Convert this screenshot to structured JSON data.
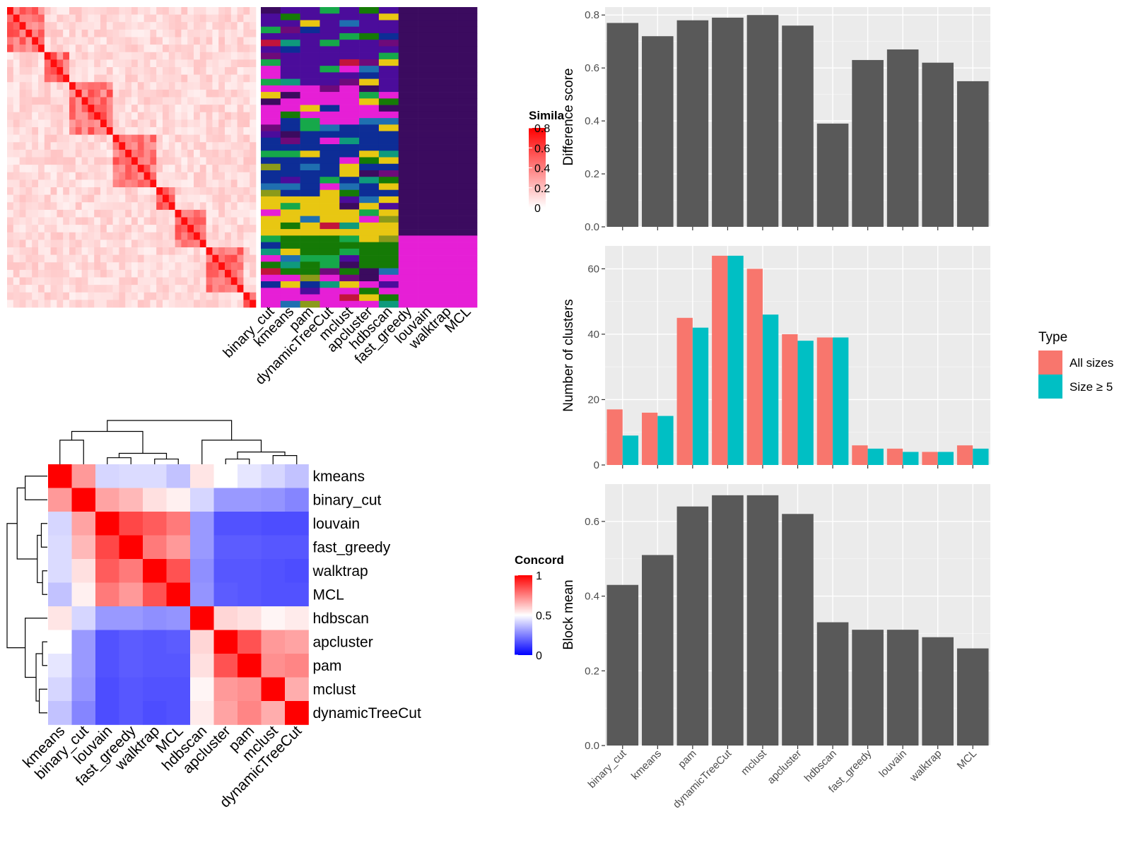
{
  "chart_data": [
    {
      "type": "heatmap",
      "panel": "similarity-matrix",
      "legend_title": "Similarity",
      "legend_title_visible": "Simila",
      "legend_ticks": [
        "0",
        "0.2",
        "0.4",
        "0.6",
        "0.8"
      ],
      "colors": {
        "low": "#ffffff",
        "high": "#ff0000"
      },
      "block_sizes": [
        6,
        4,
        7,
        7,
        3,
        5,
        6,
        2
      ],
      "within_level": 0.55,
      "between_level": 0.06
    },
    {
      "type": "heatmap",
      "panel": "cluster-membership",
      "methods": [
        "binary_cut",
        "kmeans",
        "pam",
        "dynamicTreeCut",
        "mclust",
        "apcluster",
        "hdbscan",
        "fast_greedy",
        "louvain",
        "walktrap",
        "MCL"
      ],
      "palette": [
        "#4b0c9b",
        "#0d2d96",
        "#e8c712",
        "#157a06",
        "#e61fd6",
        "#3b0b5f",
        "#0f9a7c",
        "#c2143b",
        "#8b9a1a",
        "#1f6fb0",
        "#6e0a7a",
        "#16a84a"
      ]
    },
    {
      "type": "heatmap",
      "panel": "concordance-matrix",
      "legend_title": "Concordance",
      "legend_title_visible": "Concord",
      "legend_ticks": [
        "0",
        "0.5",
        "1"
      ],
      "colors": {
        "low": "#0000ff",
        "mid": "#ffffff",
        "high": "#ff0000"
      },
      "row_labels": [
        "kmeans",
        "binary_cut",
        "louvain",
        "fast_greedy",
        "walktrap",
        "MCL",
        "hdbscan",
        "apcluster",
        "pam",
        "mclust",
        "dynamicTreeCut"
      ],
      "col_labels": [
        "kmeans",
        "binary_cut",
        "louvain",
        "fast_greedy",
        "walktrap",
        "MCL",
        "hdbscan",
        "apcluster",
        "pam",
        "mclust",
        "dynamicTreeCut"
      ],
      "values": [
        [
          1.0,
          0.7,
          0.42,
          0.43,
          0.43,
          0.38,
          0.55,
          0.5,
          0.45,
          0.42,
          0.38
        ],
        [
          0.7,
          1.0,
          0.68,
          0.64,
          0.56,
          0.53,
          0.42,
          0.3,
          0.3,
          0.29,
          0.26
        ],
        [
          0.42,
          0.68,
          1.0,
          0.86,
          0.82,
          0.76,
          0.3,
          0.16,
          0.16,
          0.15,
          0.15
        ],
        [
          0.43,
          0.64,
          0.86,
          1.0,
          0.76,
          0.7,
          0.3,
          0.18,
          0.18,
          0.17,
          0.17
        ],
        [
          0.43,
          0.56,
          0.82,
          0.76,
          1.0,
          0.84,
          0.28,
          0.17,
          0.17,
          0.16,
          0.15
        ],
        [
          0.38,
          0.53,
          0.76,
          0.7,
          0.84,
          1.0,
          0.29,
          0.18,
          0.17,
          0.16,
          0.16
        ],
        [
          0.55,
          0.42,
          0.3,
          0.3,
          0.28,
          0.29,
          1.0,
          0.58,
          0.56,
          0.52,
          0.54
        ],
        [
          0.5,
          0.3,
          0.16,
          0.18,
          0.17,
          0.18,
          0.58,
          1.0,
          0.84,
          0.7,
          0.68
        ],
        [
          0.45,
          0.3,
          0.16,
          0.18,
          0.17,
          0.17,
          0.56,
          0.84,
          1.0,
          0.72,
          0.74
        ],
        [
          0.42,
          0.29,
          0.15,
          0.17,
          0.16,
          0.16,
          0.52,
          0.7,
          0.72,
          1.0,
          0.66
        ],
        [
          0.38,
          0.26,
          0.15,
          0.17,
          0.15,
          0.16,
          0.54,
          0.68,
          0.74,
          0.66,
          1.0
        ]
      ]
    },
    {
      "type": "bar",
      "panel": "difference-score",
      "categories": [
        "binary_cut",
        "kmeans",
        "pam",
        "dynamicTreeCut",
        "mclust",
        "apcluster",
        "hdbscan",
        "fast_greedy",
        "louvain",
        "walktrap",
        "MCL"
      ],
      "values": [
        0.77,
        0.72,
        0.78,
        0.79,
        0.8,
        0.76,
        0.39,
        0.63,
        0.67,
        0.62,
        0.55
      ],
      "ylabel": "Difference score",
      "ylim": [
        0,
        0.83
      ],
      "yticks": [
        0.0,
        0.2,
        0.4,
        0.6,
        0.8
      ],
      "ytick_labels": [
        "0.0",
        "0.2",
        "0.4",
        "0.6",
        "0.8"
      ],
      "grid": true,
      "color": "#595959"
    },
    {
      "type": "bar",
      "panel": "number-of-clusters",
      "categories": [
        "binary_cut",
        "kmeans",
        "pam",
        "dynamicTreeCut",
        "mclust",
        "apcluster",
        "hdbscan",
        "fast_greedy",
        "louvain",
        "walktrap",
        "MCL"
      ],
      "series": [
        {
          "name": "All sizes",
          "color": "#f8766d",
          "values": [
            17,
            16,
            45,
            64,
            60,
            40,
            39,
            6,
            5,
            4,
            6
          ]
        },
        {
          "name": "Size ≥ 5",
          "color": "#00bfc4",
          "values": [
            9,
            15,
            42,
            64,
            46,
            38,
            39,
            5,
            4,
            4,
            5
          ]
        }
      ],
      "ylabel": "Number of clusters",
      "ylim": [
        0,
        67
      ],
      "yticks": [
        0,
        20,
        40,
        60
      ],
      "ytick_labels": [
        "0",
        "20",
        "40",
        "60"
      ],
      "legend_title": "Type",
      "legend_placement": "right",
      "grid": true
    },
    {
      "type": "bar",
      "panel": "block-mean",
      "categories": [
        "binary_cut",
        "kmeans",
        "pam",
        "dynamicTreeCut",
        "mclust",
        "apcluster",
        "hdbscan",
        "fast_greedy",
        "louvain",
        "walktrap",
        "MCL"
      ],
      "values": [
        0.43,
        0.51,
        0.64,
        0.67,
        0.67,
        0.62,
        0.33,
        0.31,
        0.31,
        0.29,
        0.26
      ],
      "ylabel": "Block mean",
      "ylim": [
        0,
        0.7
      ],
      "yticks": [
        0.0,
        0.2,
        0.4,
        0.6
      ],
      "ytick_labels": [
        "0.0",
        "0.2",
        "0.4",
        "0.6"
      ],
      "grid": true,
      "color": "#595959"
    }
  ]
}
